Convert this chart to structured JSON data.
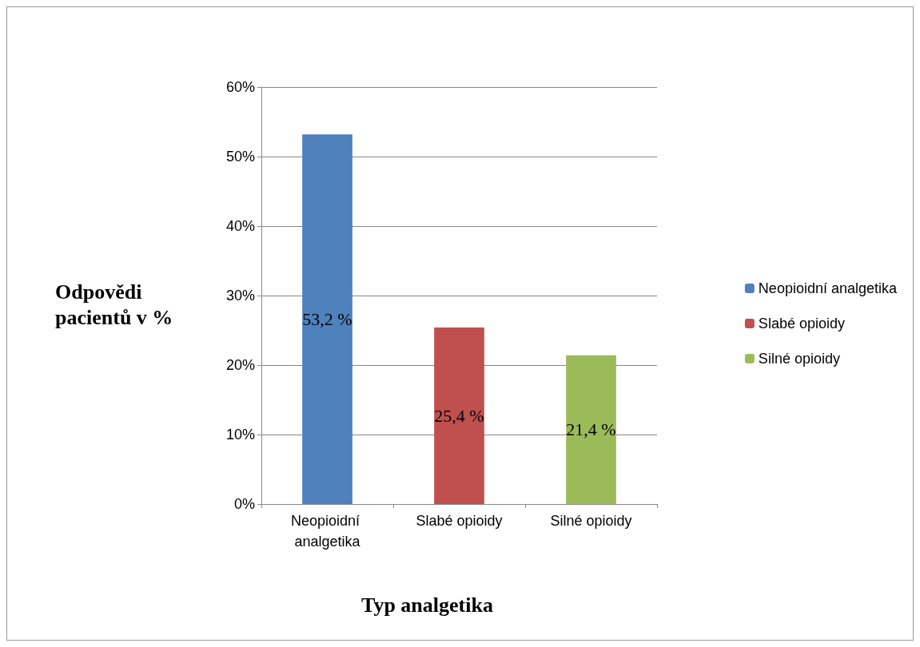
{
  "chart_data": {
    "type": "bar",
    "xlabel": "Typ analgetika",
    "ylabel": "Odpovědi pacientů v %",
    "categories": [
      "Neopioidní analgetika",
      "Slabé opioidy",
      "Silné opioidy"
    ],
    "series": [
      {
        "name": "Neopioidní analgetika",
        "color": "#4f81bd",
        "values": [
          53.2,
          null,
          null
        ],
        "value_labels": [
          "53,2 %",
          null,
          null
        ]
      },
      {
        "name": "Slabé opioidy",
        "color": "#c0504d",
        "values": [
          null,
          25.4,
          null
        ],
        "value_labels": [
          null,
          "25,4 %",
          null
        ]
      },
      {
        "name": "Silné opioidy",
        "color": "#9bbb59",
        "values": [
          null,
          null,
          21.4
        ],
        "value_labels": [
          null,
          null,
          "21,4 %"
        ]
      }
    ],
    "stacked": true,
    "ylim": [
      0,
      60
    ],
    "yticks": [
      {
        "value": 0,
        "label": "0%"
      },
      {
        "value": 10,
        "label": "10%"
      },
      {
        "value": 20,
        "label": "20%"
      },
      {
        "value": 30,
        "label": "30%"
      },
      {
        "value": 40,
        "label": "40%"
      },
      {
        "value": 50,
        "label": "50%"
      },
      {
        "value": 60,
        "label": "60%"
      }
    ],
    "grid": "y",
    "legend": "right"
  }
}
